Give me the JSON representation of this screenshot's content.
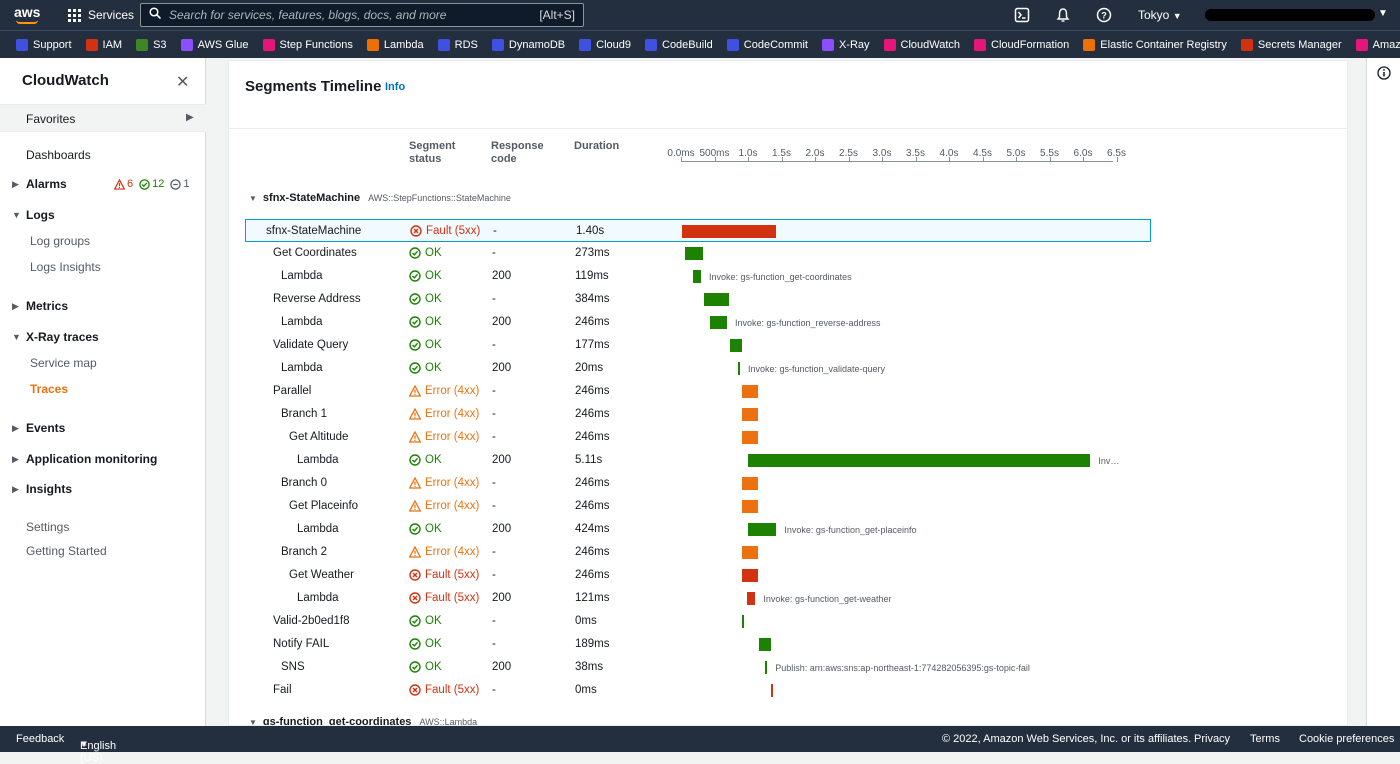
{
  "topnav": {
    "services_label": "Services",
    "search_placeholder": "Search for services, features, blogs, docs, and more",
    "search_shortcut": "[Alt+S]",
    "region": "Tokyo"
  },
  "favorites": [
    {
      "label": "Support",
      "color": "#3f51e0"
    },
    {
      "label": "IAM",
      "color": "#d13212"
    },
    {
      "label": "S3",
      "color": "#3f8624"
    },
    {
      "label": "AWS Glue",
      "color": "#8c4fff"
    },
    {
      "label": "Step Functions",
      "color": "#e7157b"
    },
    {
      "label": "Lambda",
      "color": "#ed7100"
    },
    {
      "label": "RDS",
      "color": "#3f51e0"
    },
    {
      "label": "DynamoDB",
      "color": "#3f51e0"
    },
    {
      "label": "Cloud9",
      "color": "#3f51e0"
    },
    {
      "label": "CodeBuild",
      "color": "#3f51e0"
    },
    {
      "label": "CodeCommit",
      "color": "#3f51e0"
    },
    {
      "label": "X-Ray",
      "color": "#8c4fff"
    },
    {
      "label": "CloudWatch",
      "color": "#e7157b"
    },
    {
      "label": "CloudFormation",
      "color": "#e7157b"
    },
    {
      "label": "Elastic Container Registry",
      "color": "#ed7100"
    },
    {
      "label": "Secrets Manager",
      "color": "#d13212"
    },
    {
      "label": "Amazon EventBr",
      "color": "#e7157b"
    }
  ],
  "sidebar": {
    "title": "CloudWatch",
    "favorites_label": "Favorites",
    "dashboards": "Dashboards",
    "alarms": "Alarms",
    "alarm_counts": {
      "alarm": "6",
      "ok": "12",
      "insufficient": "1"
    },
    "logs": "Logs",
    "log_groups": "Log groups",
    "logs_insights": "Logs Insights",
    "metrics": "Metrics",
    "xray_traces": "X-Ray traces",
    "service_map": "Service map",
    "traces": "Traces",
    "events": "Events",
    "application_monitoring": "Application monitoring",
    "insights": "Insights",
    "settings": "Settings",
    "getting_started": "Getting Started"
  },
  "panel": {
    "title": "Segments Timeline",
    "info": "Info",
    "col_status_1": "Segment",
    "col_status_2": "status",
    "col_code_1": "Response",
    "col_code_2": "code",
    "col_duration": "Duration"
  },
  "axis_ticks": [
    "0.0ms",
    "500ms",
    "1.0s",
    "1.5s",
    "2.0s",
    "2.5s",
    "3.0s",
    "3.5s",
    "4.0s",
    "4.5s",
    "5.0s",
    "5.5s",
    "6.0s",
    "6.5s"
  ],
  "group": {
    "name": "sfnx-StateMachine",
    "type": "AWS::StepFunctions::StateMachine"
  },
  "next_group": {
    "name": "gs-function_get-coordinates",
    "type": "AWS::Lambda"
  },
  "segments": [
    {
      "name": "sfnx-StateMachine",
      "indent": 0,
      "status": "Fault (5xx)",
      "kind": "fault",
      "code": "-",
      "duration": "1.40s",
      "start_s": 0.0,
      "dur_s": 1.4,
      "label": ""
    },
    {
      "name": "Get Coordinates",
      "indent": 1,
      "status": "OK",
      "kind": "ok",
      "code": "-",
      "duration": "273ms",
      "start_s": 0.06,
      "dur_s": 0.273,
      "label": ""
    },
    {
      "name": "Lambda",
      "indent": 2,
      "status": "OK",
      "kind": "ok",
      "code": "200",
      "duration": "119ms",
      "start_s": 0.18,
      "dur_s": 0.119,
      "label": "Invoke: gs-function_get-coordinates"
    },
    {
      "name": "Reverse Address",
      "indent": 1,
      "status": "OK",
      "kind": "ok",
      "code": "-",
      "duration": "384ms",
      "start_s": 0.34,
      "dur_s": 0.384,
      "label": ""
    },
    {
      "name": "Lambda",
      "indent": 2,
      "status": "OK",
      "kind": "ok",
      "code": "200",
      "duration": "246ms",
      "start_s": 0.44,
      "dur_s": 0.246,
      "label": "Invoke: gs-function_reverse-address"
    },
    {
      "name": "Validate Query",
      "indent": 1,
      "status": "OK",
      "kind": "ok",
      "code": "-",
      "duration": "177ms",
      "start_s": 0.73,
      "dur_s": 0.177,
      "label": ""
    },
    {
      "name": "Lambda",
      "indent": 2,
      "status": "OK",
      "kind": "ok",
      "code": "200",
      "duration": "20ms",
      "start_s": 0.85,
      "dur_s": 0.02,
      "label": "Invoke: gs-function_validate-query"
    },
    {
      "name": "Parallel",
      "indent": 1,
      "status": "Error (4xx)",
      "kind": "error",
      "code": "-",
      "duration": "246ms",
      "start_s": 0.91,
      "dur_s": 0.246,
      "label": ""
    },
    {
      "name": "Branch 1",
      "indent": 2,
      "status": "Error (4xx)",
      "kind": "error",
      "code": "-",
      "duration": "246ms",
      "start_s": 0.91,
      "dur_s": 0.246,
      "label": ""
    },
    {
      "name": "Get Altitude",
      "indent": 3,
      "status": "Error (4xx)",
      "kind": "error",
      "code": "-",
      "duration": "246ms",
      "start_s": 0.91,
      "dur_s": 0.246,
      "label": ""
    },
    {
      "name": "Lambda",
      "indent": 4,
      "status": "OK",
      "kind": "ok",
      "code": "200",
      "duration": "5.11s",
      "start_s": 1.0,
      "dur_s": 5.11,
      "label": "Inv…"
    },
    {
      "name": "Branch 0",
      "indent": 2,
      "status": "Error (4xx)",
      "kind": "error",
      "code": "-",
      "duration": "246ms",
      "start_s": 0.91,
      "dur_s": 0.246,
      "label": ""
    },
    {
      "name": "Get Placeinfo",
      "indent": 3,
      "status": "Error (4xx)",
      "kind": "error",
      "code": "-",
      "duration": "246ms",
      "start_s": 0.91,
      "dur_s": 0.246,
      "label": ""
    },
    {
      "name": "Lambda",
      "indent": 4,
      "status": "OK",
      "kind": "ok",
      "code": "200",
      "duration": "424ms",
      "start_s": 1.0,
      "dur_s": 0.424,
      "label": "Invoke: gs-function_get-placeinfo"
    },
    {
      "name": "Branch 2",
      "indent": 2,
      "status": "Error (4xx)",
      "kind": "error",
      "code": "-",
      "duration": "246ms",
      "start_s": 0.91,
      "dur_s": 0.246,
      "label": ""
    },
    {
      "name": "Get Weather",
      "indent": 3,
      "status": "Fault (5xx)",
      "kind": "fault",
      "code": "-",
      "duration": "246ms",
      "start_s": 0.91,
      "dur_s": 0.246,
      "label": ""
    },
    {
      "name": "Lambda",
      "indent": 4,
      "status": "Fault (5xx)",
      "kind": "fault",
      "code": "200",
      "duration": "121ms",
      "start_s": 0.99,
      "dur_s": 0.121,
      "label": "Invoke: gs-function_get-weather"
    },
    {
      "name": "Valid-2b0ed1f8",
      "indent": 1,
      "status": "OK",
      "kind": "ok",
      "code": "-",
      "duration": "0ms",
      "start_s": 0.91,
      "dur_s": 0.0,
      "label": ""
    },
    {
      "name": "Notify FAIL",
      "indent": 1,
      "status": "OK",
      "kind": "ok",
      "code": "-",
      "duration": "189ms",
      "start_s": 1.16,
      "dur_s": 0.189,
      "label": ""
    },
    {
      "name": "SNS",
      "indent": 2,
      "status": "OK",
      "kind": "ok",
      "code": "200",
      "duration": "38ms",
      "start_s": 1.25,
      "dur_s": 0.038,
      "label": "Publish: arn:aws:sns:ap-northeast-1:774282056395:gs-topic-fail"
    },
    {
      "name": "Fail",
      "indent": 1,
      "status": "Fault (5xx)",
      "kind": "fault",
      "code": "-",
      "duration": "0ms",
      "start_s": 1.35,
      "dur_s": 0.0,
      "label": ""
    }
  ],
  "colors": {
    "ok": "#1d8102",
    "error": "#ec7211",
    "fault": "#d13212",
    "accent": "#ec7211",
    "link": "#0073bb"
  },
  "footer": {
    "feedback": "Feedback",
    "language": "English (US)",
    "copyright": "© 2022, Amazon Web Services, Inc. or its affiliates.",
    "privacy": "Privacy",
    "terms": "Terms",
    "cookies": "Cookie preferences"
  }
}
